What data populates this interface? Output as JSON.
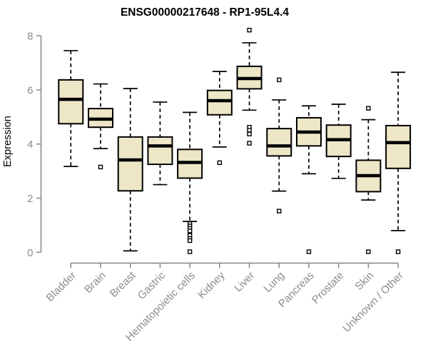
{
  "page": {
    "title": "ENSG00000217648 - RP1-95L4.4"
  },
  "colors": {
    "background": "#ffffff",
    "box_fill": "#ede6c7",
    "box_stroke": "#000000",
    "median": "#000000",
    "whisker": "#000000",
    "outlier_fill": "#ffffff",
    "axis_line": "#858585",
    "axis_text": "#8c8c8c",
    "title_text": "#000000"
  },
  "chart_data": {
    "type": "boxplot",
    "title": "ENSG00000217648 - RP1-95L4.4",
    "xlabel": "",
    "ylabel": "Expression",
    "ylim": [
      0,
      8
    ],
    "yticks": [
      0,
      2,
      4,
      6,
      8
    ],
    "grid": false,
    "legend": false,
    "categories": [
      "Bladder",
      "Brain",
      "Breast",
      "Gastric",
      "Hematopoietic cells",
      "Kidney",
      "Liver",
      "Lung",
      "Pancreas",
      "Prostate",
      "Skin",
      "Unknown / Other"
    ],
    "series": [
      {
        "name": "Bladder",
        "whisker_low": 3.17,
        "q1": 4.75,
        "median": 5.65,
        "q3": 6.37,
        "whisker_high": 7.45,
        "outliers": []
      },
      {
        "name": "Brain",
        "whisker_low": 3.83,
        "q1": 4.62,
        "median": 4.92,
        "q3": 5.31,
        "whisker_high": 6.22,
        "outliers": [
          3.15
        ]
      },
      {
        "name": "Breast",
        "whisker_low": 0.05,
        "q1": 2.27,
        "median": 3.41,
        "q3": 4.26,
        "whisker_high": 6.05,
        "outliers": []
      },
      {
        "name": "Gastric",
        "whisker_low": 2.5,
        "q1": 3.25,
        "median": 3.93,
        "q3": 4.26,
        "whisker_high": 5.55,
        "outliers": []
      },
      {
        "name": "Hematopoietic cells",
        "whisker_low": 1.14,
        "q1": 2.74,
        "median": 3.32,
        "q3": 3.8,
        "whisker_high": 5.17,
        "outliers": [
          1.06,
          0.97,
          0.88,
          0.79,
          0.62,
          0.51,
          0.43,
          0.02
        ]
      },
      {
        "name": "Kidney",
        "whisker_low": 3.89,
        "q1": 5.08,
        "median": 5.6,
        "q3": 5.98,
        "whisker_high": 6.68,
        "outliers": [
          3.31
        ]
      },
      {
        "name": "Liver",
        "whisker_low": 5.25,
        "q1": 6.04,
        "median": 6.42,
        "q3": 6.87,
        "whisker_high": 7.74,
        "outliers": [
          8.21,
          4.62,
          4.51,
          4.37,
          4.03
        ]
      },
      {
        "name": "Lung",
        "whisker_low": 2.26,
        "q1": 3.56,
        "median": 3.93,
        "q3": 4.57,
        "whisker_high": 5.63,
        "outliers": [
          6.37,
          1.52
        ]
      },
      {
        "name": "Pancreas",
        "whisker_low": 2.9,
        "q1": 3.93,
        "median": 4.44,
        "q3": 4.97,
        "whisker_high": 5.41,
        "outliers": [
          0.02
        ]
      },
      {
        "name": "Prostate",
        "whisker_low": 2.73,
        "q1": 3.54,
        "median": 4.16,
        "q3": 4.7,
        "whisker_high": 5.47,
        "outliers": []
      },
      {
        "name": "Skin",
        "whisker_low": 1.93,
        "q1": 2.24,
        "median": 2.83,
        "q3": 3.4,
        "whisker_high": 4.9,
        "outliers": [
          5.32,
          0.02
        ]
      },
      {
        "name": "Unknown / Other",
        "whisker_low": 0.8,
        "q1": 3.1,
        "median": 4.05,
        "q3": 4.68,
        "whisker_high": 6.65,
        "outliers": [
          0.02
        ]
      }
    ]
  }
}
